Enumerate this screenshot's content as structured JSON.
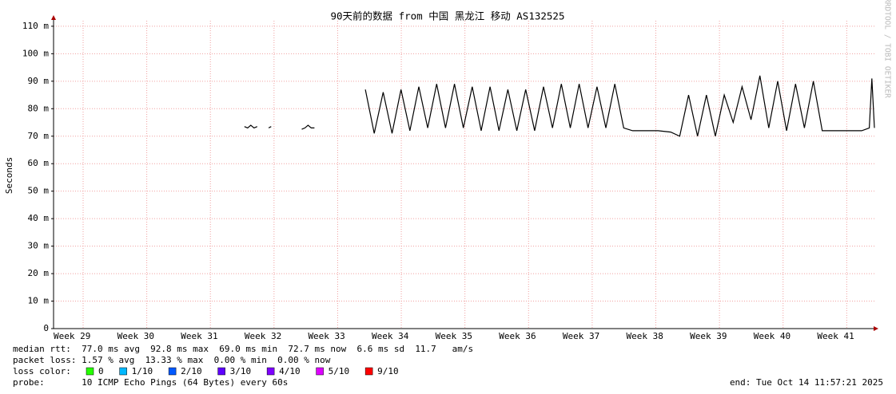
{
  "chart_data": {
    "type": "line",
    "title": "90天前的数据 from 中国 黑龙江 移动 AS132525",
    "y_label": "Seconds",
    "watermark": "RRDTOOL / TOBI OETIKER",
    "x": [
      32.0,
      32.05,
      32.1,
      32.15,
      32.2,
      32.25,
      32.38,
      32.42,
      32.5,
      32.9,
      32.95,
      33.0,
      33.05,
      33.1,
      33.2,
      33.9,
      34.04,
      34.18,
      34.32,
      34.46,
      34.6,
      34.74,
      34.88,
      35.02,
      35.16,
      35.3,
      35.44,
      35.58,
      35.72,
      35.86,
      36.0,
      36.14,
      36.28,
      36.42,
      36.56,
      36.7,
      36.84,
      36.98,
      37.12,
      37.26,
      37.4,
      37.54,
      37.68,
      37.82,
      37.96,
      38.1,
      38.3,
      38.5,
      38.7,
      38.84,
      38.98,
      39.12,
      39.26,
      39.4,
      39.54,
      39.68,
      39.82,
      39.96,
      40.1,
      40.24,
      40.38,
      40.52,
      40.66,
      40.8,
      40.94,
      41.08,
      41.3,
      41.5,
      41.7,
      41.82,
      41.86,
      41.9
    ],
    "series": [
      {
        "name": "median rtt",
        "color": "#000000",
        "values": [
          73.5,
          73,
          74,
          73,
          73.5,
          null,
          73,
          73.5,
          null,
          72.5,
          73,
          74,
          73,
          73,
          null,
          87,
          71,
          86,
          71,
          87,
          72,
          88,
          73,
          89,
          73,
          89,
          73,
          88,
          72,
          88,
          72,
          87,
          72,
          87,
          72,
          88,
          73,
          89,
          73,
          89,
          73,
          88,
          73,
          89,
          73,
          72,
          72,
          72,
          71.5,
          70,
          85,
          70,
          85,
          70,
          85,
          75,
          88,
          76,
          92,
          73,
          90,
          72,
          89,
          73,
          90,
          72,
          72,
          72,
          72,
          73,
          91,
          73
        ]
      }
    ],
    "xlim": [
      29,
      41.9
    ],
    "xticks": [
      {
        "value": 29,
        "label": "Week 29"
      },
      {
        "value": 30,
        "label": "Week 30"
      },
      {
        "value": 31,
        "label": "Week 31"
      },
      {
        "value": 32,
        "label": "Week 32"
      },
      {
        "value": 33,
        "label": "Week 33"
      },
      {
        "value": 34,
        "label": "Week 34"
      },
      {
        "value": 35,
        "label": "Week 35"
      },
      {
        "value": 36,
        "label": "Week 36"
      },
      {
        "value": 37,
        "label": "Week 37"
      },
      {
        "value": 38,
        "label": "Week 38"
      },
      {
        "value": 39,
        "label": "Week 39"
      },
      {
        "value": 40,
        "label": "Week 40"
      },
      {
        "value": 41,
        "label": "Week 41"
      }
    ],
    "ylim": [
      0,
      112
    ],
    "yticks": [
      0,
      {
        "value": 10,
        "label": "10 m"
      },
      {
        "value": 20,
        "label": "20 m"
      },
      {
        "value": 30,
        "label": "30 m"
      },
      {
        "value": 40,
        "label": "40 m"
      },
      {
        "value": 50,
        "label": "50 m"
      },
      {
        "value": 60,
        "label": "60 m"
      },
      {
        "value": 70,
        "label": "70 m"
      },
      {
        "value": 80,
        "label": "80 m"
      },
      {
        "value": 90,
        "label": "90 m"
      },
      {
        "value": 100,
        "label": "100 m"
      },
      {
        "value": 110,
        "label": "110 m"
      }
    ],
    "grid": true,
    "stats_lines": [
      "median rtt:  77.0 ms avg  92.8 ms max  69.0 ms min  72.7 ms now  6.6 ms sd  11.7   am/s",
      "packet loss: 1.57 % avg  13.33 % max  0.00 % min  0.00 % now"
    ],
    "loss_color_label": "loss color:",
    "loss_legend": [
      {
        "label": "0",
        "color": "#26ff00"
      },
      {
        "label": "1/10",
        "color": "#00b8ff"
      },
      {
        "label": "2/10",
        "color": "#0059ff"
      },
      {
        "label": "3/10",
        "color": "#5e00ff"
      },
      {
        "label": "4/10",
        "color": "#7e00ff"
      },
      {
        "label": "5/10",
        "color": "#dd00ff"
      },
      {
        "label": "9/10",
        "color": "#ff0000"
      }
    ],
    "probe": "probe:       10 ICMP Echo Pings (64 Bytes) every 60s",
    "end": "end: Tue Oct 14 11:57:21 2025"
  }
}
